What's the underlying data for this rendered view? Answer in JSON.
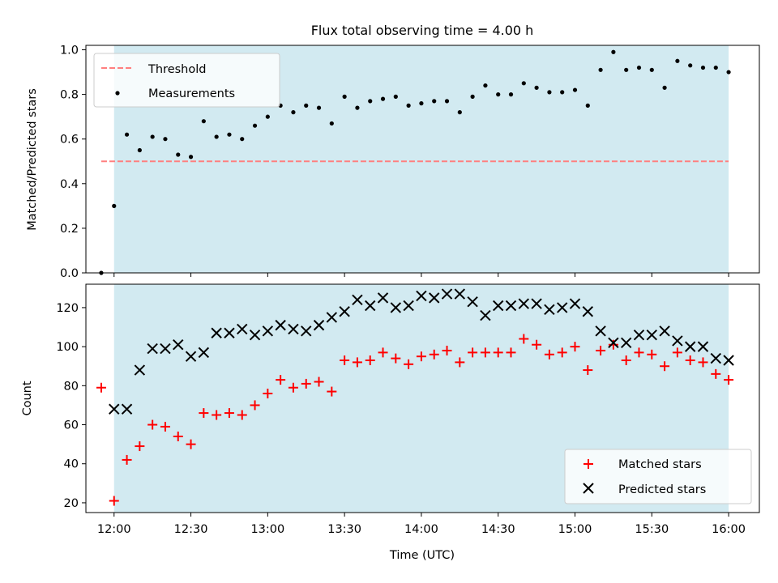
{
  "title": "Flux total observing time = 4.00 h",
  "x_tick_labels": [
    "12:00",
    "12:30",
    "13:00",
    "13:30",
    "14:00",
    "14:30",
    "15:00",
    "15:30",
    "16:00"
  ],
  "xlabel": "Time (UTC)",
  "colors": {
    "shade": "#add8e6",
    "threshold": "#ff7f7f",
    "measurement": "#000000",
    "matched": "#ff0000",
    "predicted": "#000000"
  },
  "chart_data": [
    {
      "type": "scatter",
      "ylabel": "Matched/Predicted stars",
      "xlim": [
        "11:49",
        "16:12"
      ],
      "ylim": [
        0,
        1.02
      ],
      "y_ticks": [
        0.0,
        0.2,
        0.4,
        0.6,
        0.8,
        1.0
      ],
      "y_tick_labels": [
        "0.0",
        "0.2",
        "0.4",
        "0.6",
        "0.8",
        "1.0"
      ],
      "shaded_span": [
        "12:00",
        "16:00"
      ],
      "legend": {
        "placement": "top-left",
        "entries": [
          "Threshold",
          "Measurements"
        ]
      },
      "threshold": {
        "name": "Threshold",
        "value": 0.5,
        "x": [
          "11:55",
          "16:00"
        ]
      },
      "series": [
        {
          "name": "Measurements",
          "x": [
            "11:55",
            "11:60",
            "12:05",
            "12:10",
            "12:15",
            "12:20",
            "12:25",
            "12:30",
            "12:35",
            "12:40",
            "12:45",
            "12:50",
            "12:55",
            "13:00",
            "13:05",
            "13:10",
            "13:15",
            "13:20",
            "13:25",
            "13:30",
            "13:35",
            "13:40",
            "13:45",
            "13:50",
            "13:55",
            "14:00",
            "14:05",
            "14:10",
            "14:15",
            "14:20",
            "14:25",
            "14:30",
            "14:35",
            "14:40",
            "14:45",
            "14:50",
            "14:55",
            "15:00",
            "15:05",
            "15:10",
            "15:15",
            "15:20",
            "15:25",
            "15:30",
            "15:35",
            "15:40",
            "15:45",
            "15:50",
            "15:55",
            "16:00"
          ],
          "y": [
            0.0,
            0.3,
            0.62,
            0.55,
            0.61,
            0.6,
            0.53,
            0.52,
            0.68,
            0.61,
            0.62,
            0.6,
            0.66,
            0.7,
            0.75,
            0.72,
            0.75,
            0.74,
            0.67,
            0.79,
            0.74,
            0.77,
            0.78,
            0.79,
            0.75,
            0.76,
            0.77,
            0.77,
            0.72,
            0.79,
            0.84,
            0.8,
            0.8,
            0.85,
            0.83,
            0.81,
            0.81,
            0.82,
            0.75,
            0.91,
            0.99,
            0.91,
            0.92,
            0.91,
            0.83,
            0.95,
            0.93,
            0.92,
            0.92,
            0.9
          ]
        }
      ]
    },
    {
      "type": "scatter",
      "ylabel": "Count",
      "xlim": [
        "11:49",
        "16:12"
      ],
      "ylim": [
        15,
        132
      ],
      "y_ticks": [
        20,
        40,
        60,
        80,
        100,
        120
      ],
      "y_tick_labels": [
        "20",
        "40",
        "60",
        "80",
        "100",
        "120"
      ],
      "shaded_span": [
        "12:00",
        "16:00"
      ],
      "legend": {
        "placement": "bottom-right",
        "entries": [
          "Matched stars",
          "Predicted stars"
        ]
      },
      "series": [
        {
          "name": "Matched stars",
          "marker": "+",
          "x": [
            "11:55",
            "11:60",
            "12:05",
            "12:10",
            "12:15",
            "12:20",
            "12:25",
            "12:30",
            "12:35",
            "12:40",
            "12:45",
            "12:50",
            "12:55",
            "13:00",
            "13:05",
            "13:10",
            "13:15",
            "13:20",
            "13:25",
            "13:30",
            "13:35",
            "13:40",
            "13:45",
            "13:50",
            "13:55",
            "14:00",
            "14:05",
            "14:10",
            "14:15",
            "14:20",
            "14:25",
            "14:30",
            "14:35",
            "14:40",
            "14:45",
            "14:50",
            "14:55",
            "15:00",
            "15:05",
            "15:10",
            "15:15",
            "15:20",
            "15:25",
            "15:30",
            "15:35",
            "15:40",
            "15:45",
            "15:50",
            "15:55",
            "16:00"
          ],
          "y": [
            79,
            21,
            42,
            49,
            60,
            59,
            54,
            50,
            66,
            65,
            66,
            65,
            70,
            76,
            83,
            79,
            81,
            82,
            77,
            93,
            92,
            93,
            97,
            94,
            91,
            95,
            96,
            98,
            92,
            97,
            97,
            97,
            97,
            104,
            101,
            96,
            97,
            100,
            88,
            98,
            101,
            93,
            97,
            96,
            90,
            97,
            93,
            92,
            86,
            83
          ]
        },
        {
          "name": "Predicted stars",
          "marker": "x",
          "x": [
            "11:60",
            "12:05",
            "12:10",
            "12:15",
            "12:20",
            "12:25",
            "12:30",
            "12:35",
            "12:40",
            "12:45",
            "12:50",
            "12:55",
            "13:00",
            "13:05",
            "13:10",
            "13:15",
            "13:20",
            "13:25",
            "13:30",
            "13:35",
            "13:40",
            "13:45",
            "13:50",
            "13:55",
            "14:00",
            "14:05",
            "14:10",
            "14:15",
            "14:20",
            "14:25",
            "14:30",
            "14:35",
            "14:40",
            "14:45",
            "14:50",
            "14:55",
            "15:00",
            "15:05",
            "15:10",
            "15:15",
            "15:20",
            "15:25",
            "15:30",
            "15:35",
            "15:40",
            "15:45",
            "15:50",
            "15:55",
            "16:00"
          ],
          "y": [
            68,
            68,
            88,
            99,
            99,
            101,
            95,
            97,
            107,
            107,
            109,
            106,
            108,
            111,
            109,
            108,
            111,
            115,
            118,
            124,
            121,
            125,
            120,
            121,
            126,
            125,
            127,
            127,
            123,
            116,
            121,
            121,
            122,
            122,
            119,
            120,
            122,
            118,
            108,
            102,
            102,
            106,
            106,
            108,
            103,
            100,
            100,
            94,
            93
          ]
        }
      ]
    }
  ]
}
